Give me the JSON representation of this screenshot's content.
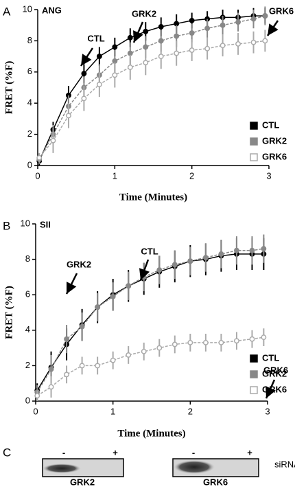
{
  "chart_data": [
    {
      "type": "line",
      "panel": "A",
      "title": "ANG",
      "xlabel": "Time (Minutes)",
      "ylabel": "FRET (%F)",
      "xlim": [
        0,
        3
      ],
      "ylim": [
        0,
        10
      ],
      "xticks": [
        0,
        1,
        2,
        3
      ],
      "yticks": [
        0,
        2,
        4,
        6,
        8,
        10
      ],
      "x": [
        0.02,
        0.2,
        0.4,
        0.6,
        0.8,
        1.0,
        1.2,
        1.4,
        1.6,
        1.8,
        2.0,
        2.2,
        2.4,
        2.6,
        2.8,
        2.95
      ],
      "series": [
        {
          "name": "CTL",
          "color": "#000000",
          "marker": "filled",
          "dashed": false,
          "values": [
            0.3,
            2.3,
            4.5,
            5.9,
            7.0,
            7.6,
            8.2,
            8.6,
            8.9,
            9.1,
            9.3,
            9.4,
            9.5,
            9.5,
            9.6,
            9.6
          ],
          "errors": [
            0.3,
            0.5,
            0.6,
            0.6,
            0.6,
            0.6,
            0.6,
            0.6,
            0.6,
            0.6,
            0.5,
            0.5,
            0.5,
            0.5,
            0.5,
            0.5
          ]
        },
        {
          "name": "GRK2",
          "color": "#888888",
          "marker": "filled",
          "dashed": true,
          "values": [
            0.4,
            2.0,
            3.8,
            5.0,
            5.8,
            6.7,
            7.2,
            7.6,
            8.0,
            8.3,
            8.5,
            8.8,
            9.0,
            9.2,
            9.4,
            9.6
          ],
          "errors": [
            0.3,
            0.6,
            0.7,
            0.7,
            0.7,
            0.7,
            0.7,
            0.7,
            0.7,
            0.7,
            0.6,
            0.6,
            0.6,
            0.6,
            0.6,
            0.6
          ]
        },
        {
          "name": "GRK6",
          "color": "#aaaaaa",
          "marker": "open",
          "dashed": true,
          "values": [
            0.5,
            1.6,
            3.2,
            4.3,
            5.2,
            5.8,
            6.3,
            6.6,
            7.0,
            7.2,
            7.4,
            7.5,
            7.7,
            7.8,
            7.9,
            8.0
          ],
          "errors": [
            0.3,
            0.8,
            0.8,
            0.8,
            0.8,
            0.8,
            0.8,
            0.8,
            0.8,
            0.8,
            0.7,
            0.7,
            0.7,
            0.7,
            0.7,
            0.7
          ]
        }
      ],
      "annotations": [
        "CTL",
        "GRK2",
        "GRK6"
      ]
    },
    {
      "type": "line",
      "panel": "B",
      "title": "SII",
      "xlabel": "Time (Minutes)",
      "ylabel": "FRET (%F)",
      "xlim": [
        0,
        3
      ],
      "ylim": [
        0,
        10
      ],
      "xticks": [
        0,
        1,
        2,
        3
      ],
      "yticks": [
        0,
        2,
        4,
        6,
        8,
        10
      ],
      "x": [
        0.02,
        0.2,
        0.4,
        0.6,
        0.8,
        1.0,
        1.2,
        1.4,
        1.6,
        1.8,
        2.0,
        2.2,
        2.4,
        2.6,
        2.8,
        2.95
      ],
      "series": [
        {
          "name": "CTL",
          "color": "#000000",
          "marker": "filled",
          "dashed": false,
          "values": [
            0.6,
            1.9,
            3.2,
            4.3,
            5.3,
            6.0,
            6.5,
            6.9,
            7.3,
            7.6,
            7.9,
            8.0,
            8.2,
            8.3,
            8.3,
            8.3
          ],
          "errors": [
            0.4,
            0.9,
            0.9,
            0.9,
            0.9,
            0.9,
            0.9,
            0.9,
            0.9,
            0.9,
            0.9,
            0.9,
            0.9,
            0.9,
            0.9,
            0.9
          ]
        },
        {
          "name": "GRK2",
          "color": "#888888",
          "marker": "filled",
          "dashed": true,
          "values": [
            0.5,
            1.8,
            3.5,
            4.2,
            5.3,
            5.9,
            6.5,
            7.0,
            7.4,
            7.7,
            7.9,
            8.1,
            8.3,
            8.5,
            8.5,
            8.6
          ],
          "errors": [
            0.4,
            0.8,
            0.8,
            0.8,
            0.8,
            0.8,
            0.8,
            0.8,
            0.8,
            0.8,
            0.8,
            0.8,
            0.8,
            0.8,
            0.8,
            0.8
          ]
        },
        {
          "name": "GRK6",
          "color": "#aaaaaa",
          "marker": "open",
          "dashed": true,
          "values": [
            0.3,
            0.8,
            1.5,
            2.0,
            2.0,
            2.3,
            2.6,
            2.8,
            3.0,
            3.2,
            3.3,
            3.3,
            3.3,
            3.4,
            3.5,
            3.6
          ],
          "errors": [
            0.3,
            0.6,
            0.5,
            0.5,
            0.5,
            0.5,
            0.5,
            0.5,
            0.5,
            0.5,
            0.5,
            0.5,
            0.5,
            0.5,
            0.5,
            0.5
          ]
        }
      ],
      "annotations": [
        "GRK2",
        "CTL",
        "GRK6"
      ]
    }
  ],
  "blot": {
    "panel": "C",
    "lanes": [
      "-",
      "+"
    ],
    "reagent": "siRNA",
    "blots": [
      "GRK2",
      "GRK6"
    ]
  }
}
